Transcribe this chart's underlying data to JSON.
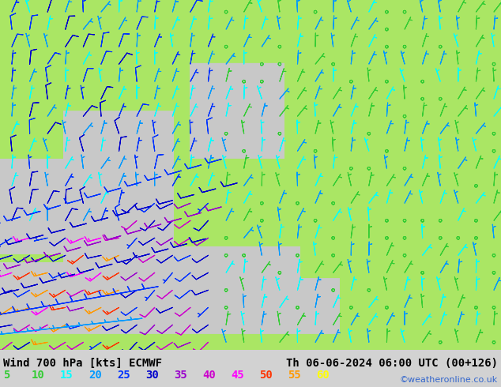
{
  "title_left": "Wind 700 hPa [kts] ECMWF",
  "title_right": "Th 06-06-2024 06:00 UTC (00+126)",
  "watermark": "©weatheronline.co.uk",
  "legend_values": [
    5,
    10,
    15,
    20,
    25,
    30,
    35,
    40,
    45,
    50,
    55,
    60
  ],
  "legend_colors": [
    "#33cc33",
    "#33cc33",
    "#00ffff",
    "#0099ff",
    "#0033ff",
    "#0000cc",
    "#9900cc",
    "#cc00cc",
    "#ff00ff",
    "#ff3300",
    "#ff9900",
    "#ffff00"
  ],
  "bg_land_green": [
    170,
    230,
    100
  ],
  "bg_sea_gray": [
    200,
    200,
    200
  ],
  "bg_fig": [
    210,
    210,
    210
  ],
  "title_color": "#000000",
  "watermark_color": "#3366cc",
  "font_size_title": 10,
  "font_size_legend": 10,
  "speed_thresholds": [
    5,
    10,
    15,
    20,
    25,
    30,
    35,
    40,
    45,
    50,
    55,
    60
  ],
  "speed_colors": [
    "#33cc33",
    "#33cc33",
    "#00ffff",
    "#0099ff",
    "#0033ff",
    "#0000cc",
    "#9900cc",
    "#cc00cc",
    "#ff00ff",
    "#ff3300",
    "#ff9900",
    "#ffff00"
  ]
}
